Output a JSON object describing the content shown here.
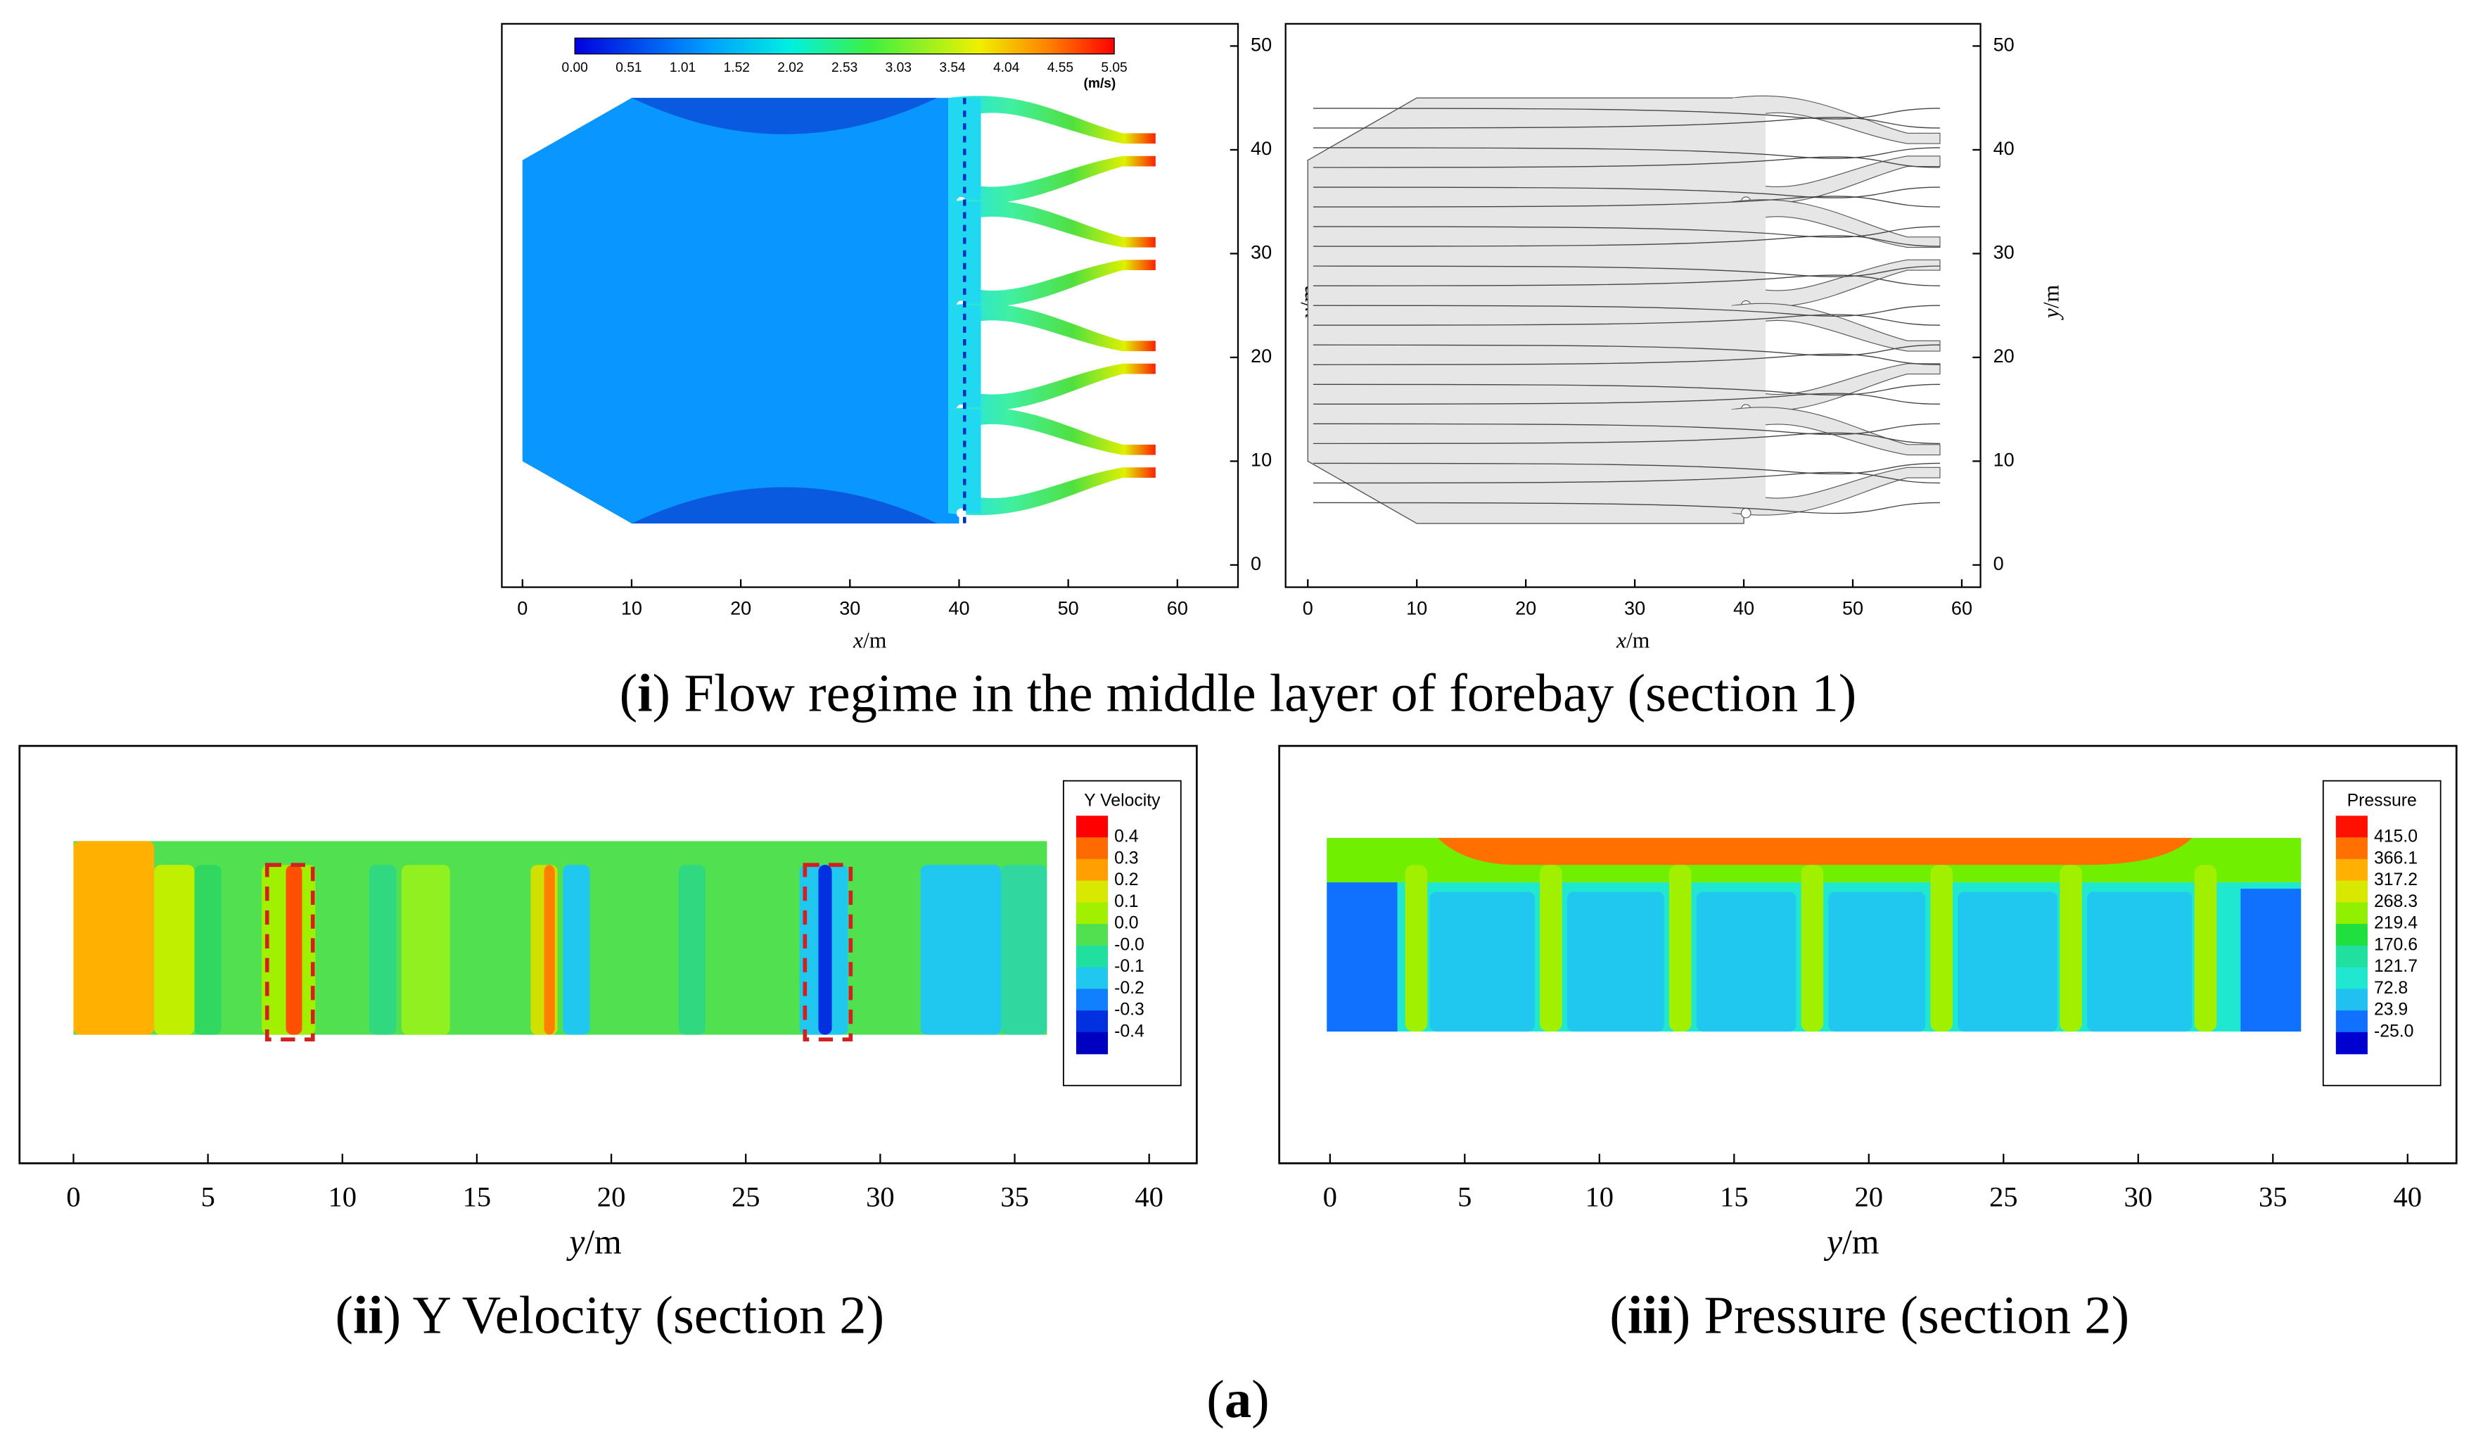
{
  "panel_i": {
    "caption": [
      "(",
      "i",
      ") Flow regime in the middle layer of forebay (section 1)"
    ],
    "colorbar": {
      "labels": [
        "0.00",
        "0.51",
        "1.01",
        "1.52",
        "2.02",
        "2.53",
        "3.03",
        "3.54",
        "4.04",
        "4.55",
        "5.05"
      ],
      "unit": "(m/s)"
    },
    "xticks": [
      0,
      10,
      20,
      30,
      40,
      50,
      60
    ],
    "yticks": [
      0,
      10,
      20,
      30,
      40,
      50
    ],
    "xlabel": [
      "x",
      "/m"
    ],
    "ylabel": [
      "y",
      "/m"
    ]
  },
  "panel_ii": {
    "caption": [
      "(",
      "ii",
      ") Y Velocity (section 2)"
    ],
    "legend_title": "Y Velocity",
    "legend_labels": [
      "0.4",
      "0.3",
      "0.2",
      "0.1",
      "0.0",
      "-0.0",
      "-0.1",
      "-0.2",
      "-0.3",
      "-0.4"
    ],
    "xticks": [
      0,
      5,
      10,
      15,
      20,
      25,
      30,
      35,
      40
    ],
    "xlabel": [
      "y",
      "/m"
    ]
  },
  "panel_iii": {
    "caption": [
      "(",
      "iii",
      ") Pressure (section 2)"
    ],
    "legend_title": "Pressure",
    "legend_labels": [
      "415.0",
      "366.1",
      "317.2",
      "268.3",
      "219.4",
      "170.6",
      "121.7",
      "72.8",
      "23.9",
      "-25.0"
    ],
    "xticks": [
      0,
      5,
      10,
      15,
      20,
      25,
      30,
      35,
      40
    ],
    "xlabel": [
      "y",
      "/m"
    ]
  },
  "figure_label": [
    "(",
    "a",
    ")"
  ]
}
